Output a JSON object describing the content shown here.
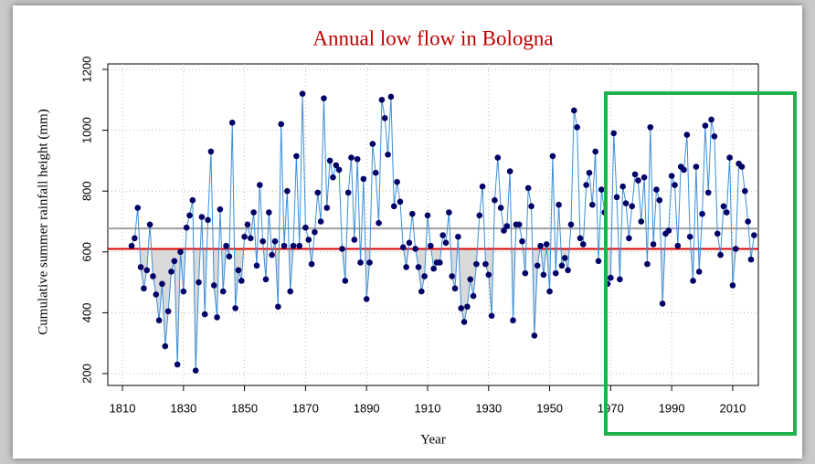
{
  "chart_data": {
    "type": "line",
    "title": "Annual low flow in Bologna",
    "x_label": "Year",
    "y_label": "Cumulative summer rainfall height (mm)",
    "x": [
      1813,
      1814,
      1815,
      1816,
      1817,
      1818,
      1819,
      1820,
      1821,
      1822,
      1823,
      1824,
      1825,
      1826,
      1827,
      1828,
      1829,
      1830,
      1831,
      1832,
      1833,
      1834,
      1835,
      1836,
      1837,
      1838,
      1839,
      1840,
      1841,
      1842,
      1843,
      1844,
      1845,
      1846,
      1847,
      1848,
      1849,
      1850,
      1851,
      1852,
      1853,
      1854,
      1855,
      1856,
      1857,
      1858,
      1859,
      1860,
      1861,
      1862,
      1863,
      1864,
      1865,
      1866,
      1867,
      1868,
      1869,
      1870,
      1871,
      1872,
      1873,
      1874,
      1875,
      1876,
      1877,
      1878,
      1879,
      1880,
      1881,
      1882,
      1883,
      1884,
      1885,
      1886,
      1887,
      1888,
      1889,
      1890,
      1891,
      1892,
      1893,
      1894,
      1895,
      1896,
      1897,
      1898,
      1899,
      1900,
      1901,
      1902,
      1903,
      1904,
      1905,
      1906,
      1907,
      1908,
      1909,
      1910,
      1911,
      1912,
      1913,
      1914,
      1915,
      1916,
      1917,
      1918,
      1919,
      1920,
      1921,
      1922,
      1923,
      1924,
      1925,
      1926,
      1927,
      1928,
      1929,
      1930,
      1931,
      1932,
      1933,
      1934,
      1935,
      1936,
      1937,
      1938,
      1939,
      1940,
      1941,
      1942,
      1943,
      1944,
      1945,
      1946,
      1947,
      1948,
      1949,
      1950,
      1951,
      1952,
      1953,
      1954,
      1955,
      1956,
      1957,
      1958,
      1959,
      1960,
      1961,
      1962,
      1963,
      1964,
      1965,
      1966,
      1967,
      1968,
      1969,
      1970,
      1971,
      1972,
      1973,
      1974,
      1975,
      1976,
      1977,
      1978,
      1979,
      1980,
      1981,
      1982,
      1983,
      1984,
      1985,
      1986,
      1987,
      1988,
      1989,
      1990,
      1991,
      1992,
      1993,
      1994,
      1995,
      1996,
      1997,
      1998,
      1999,
      2000,
      2001,
      2002,
      2003,
      2004,
      2005,
      2006,
      2007,
      2008,
      2009,
      2010,
      2011,
      2012,
      2013,
      2014,
      2015,
      2016,
      2017
    ],
    "series": [
      {
        "name": "Cumulative summer rainfall height",
        "color": "#3b8fd9",
        "marker_color": "#000066",
        "values": [
          620,
          645,
          745,
          550,
          480,
          540,
          690,
          520,
          460,
          375,
          495,
          290,
          405,
          535,
          570,
          230,
          600,
          470,
          680,
          720,
          770,
          210,
          500,
          715,
          395,
          705,
          930,
          490,
          385,
          740,
          470,
          620,
          585,
          1025,
          415,
          540,
          505,
          650,
          690,
          645,
          730,
          555,
          820,
          635,
          510,
          730,
          590,
          635,
          420,
          1020,
          620,
          800,
          470,
          620,
          915,
          620,
          1120,
          680,
          640,
          560,
          665,
          795,
          700,
          1105,
          745,
          900,
          845,
          885,
          870,
          610,
          505,
          795,
          910,
          640,
          905,
          565,
          840,
          445,
          565,
          955,
          860,
          695,
          1100,
          1040,
          920,
          1110,
          750,
          830,
          765,
          615,
          550,
          630,
          725,
          610,
          550,
          470,
          520,
          720,
          620,
          545,
          565,
          565,
          655,
          630,
          730,
          520,
          480,
          650,
          415,
          370,
          420,
          510,
          455,
          560,
          720,
          815,
          560,
          525,
          390,
          770,
          910,
          745,
          670,
          685,
          865,
          375,
          690,
          690,
          635,
          530,
          810,
          750,
          325,
          555,
          620,
          525,
          625,
          470,
          915,
          530,
          755,
          555,
          580,
          540,
          690,
          1065,
          1010,
          645,
          625,
          820,
          860,
          755,
          930,
          570,
          805,
          730,
          495,
          515,
          990,
          780,
          510,
          815,
          760,
          645,
          750,
          855,
          835,
          700,
          845,
          560,
          1010,
          625,
          805,
          770,
          430,
          660,
          670,
          850,
          820,
          620,
          880,
          870,
          985,
          650,
          505,
          880,
          535,
          725,
          1015,
          795,
          1035,
          980,
          660,
          590,
          750,
          730,
          910,
          490,
          610,
          890,
          880,
          800,
          700,
          575,
          655
        ]
      }
    ],
    "hlines": [
      {
        "value": 677,
        "color": "#a0a0a0"
      },
      {
        "value": 610,
        "color": "#e00000"
      }
    ],
    "shade_below": 610,
    "xlim": [
      1805.2,
      2018.4
    ],
    "ylim": [
      161,
      1218
    ],
    "xticks": [
      1810,
      1830,
      1850,
      1870,
      1890,
      1910,
      1930,
      1950,
      1970,
      1990,
      2010
    ],
    "yticks": [
      200,
      400,
      600,
      800,
      1000,
      1200
    ],
    "grid": true
  }
}
